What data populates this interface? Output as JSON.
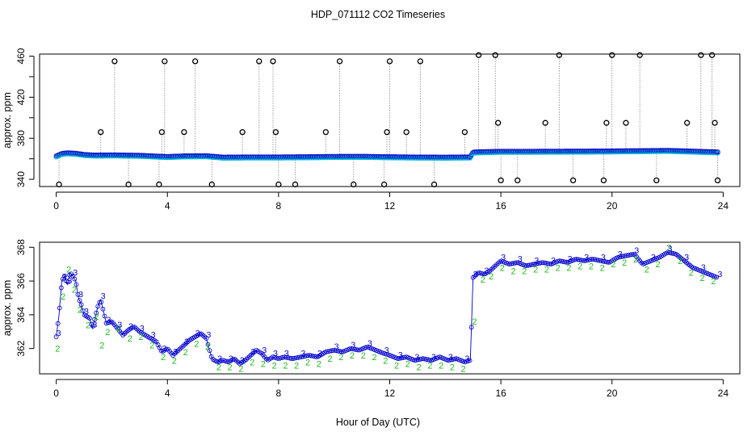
{
  "chart_data": [
    {
      "type": "scatter",
      "title": "HDP_071112  CO2 Timeseries",
      "xlabel": "",
      "ylabel": "approx. ppm",
      "xlim": [
        -0.6,
        24.6
      ],
      "ylim": [
        333,
        462
      ],
      "x_ticks": [
        0,
        4,
        8,
        12,
        16,
        20,
        24
      ],
      "y_ticks": [
        340,
        360,
        380,
        400,
        420,
        440,
        460
      ],
      "y_tick_labels": [
        "340",
        "",
        "380",
        "",
        "420",
        "",
        "460"
      ],
      "baseline": [
        [
          0.0,
          362.4
        ],
        [
          0.2,
          364.8
        ],
        [
          0.4,
          365.4
        ],
        [
          0.7,
          365.0
        ],
        [
          1.0,
          363.8
        ],
        [
          1.4,
          363.2
        ],
        [
          2.0,
          363.4
        ],
        [
          3.0,
          363.0
        ],
        [
          3.8,
          362.0
        ],
        [
          4.0,
          361.8
        ],
        [
          4.6,
          362.4
        ],
        [
          5.4,
          362.6
        ],
        [
          6.0,
          361.2
        ],
        [
          7.0,
          361.4
        ],
        [
          8.0,
          361.4
        ],
        [
          9.0,
          361.6
        ],
        [
          10.0,
          361.9
        ],
        [
          11.0,
          362.0
        ],
        [
          12.0,
          361.6
        ],
        [
          13.0,
          361.3
        ],
        [
          14.0,
          361.2
        ],
        [
          14.9,
          361.4
        ],
        [
          15.0,
          366.2
        ],
        [
          15.5,
          366.6
        ],
        [
          16.0,
          366.9
        ],
        [
          17.0,
          366.9
        ],
        [
          18.0,
          367.0
        ],
        [
          19.0,
          367.1
        ],
        [
          19.9,
          367.2
        ],
        [
          20.0,
          367.3
        ],
        [
          21.0,
          367.5
        ],
        [
          22.0,
          367.8
        ],
        [
          23.0,
          367.0
        ],
        [
          23.8,
          366.3
        ]
      ],
      "spikes": [
        [
          0.1,
          335
        ],
        [
          1.6,
          386
        ],
        [
          2.1,
          455
        ],
        [
          2.6,
          335
        ],
        [
          3.7,
          335
        ],
        [
          3.8,
          386
        ],
        [
          3.9,
          455
        ],
        [
          4.6,
          386
        ],
        [
          5.0,
          455
        ],
        [
          5.6,
          335
        ],
        [
          6.7,
          386
        ],
        [
          7.3,
          455
        ],
        [
          7.8,
          455
        ],
        [
          7.9,
          386
        ],
        [
          8.0,
          335
        ],
        [
          8.6,
          335
        ],
        [
          9.7,
          386
        ],
        [
          10.2,
          455
        ],
        [
          10.7,
          335
        ],
        [
          11.8,
          335
        ],
        [
          11.9,
          386
        ],
        [
          12.0,
          455
        ],
        [
          12.6,
          386
        ],
        [
          13.1,
          455
        ],
        [
          13.6,
          335
        ],
        [
          14.7,
          386
        ],
        [
          15.2,
          461
        ],
        [
          15.8,
          461
        ],
        [
          15.9,
          395
        ],
        [
          16.0,
          339
        ],
        [
          16.6,
          339
        ],
        [
          17.6,
          395
        ],
        [
          18.1,
          461
        ],
        [
          18.6,
          339
        ],
        [
          19.7,
          339
        ],
        [
          19.8,
          395
        ],
        [
          20.0,
          461
        ],
        [
          20.5,
          395
        ],
        [
          21.0,
          461
        ],
        [
          21.6,
          339
        ],
        [
          22.7,
          395
        ],
        [
          23.2,
          461
        ],
        [
          23.6,
          461
        ],
        [
          23.7,
          395
        ],
        [
          23.8,
          339
        ]
      ]
    },
    {
      "type": "scatter",
      "title": "",
      "xlabel": "Hour of Day (UTC)",
      "ylabel": "approx. ppm",
      "xlim": [
        -0.6,
        24.6
      ],
      "ylim": [
        360.5,
        368.3
      ],
      "x_ticks": [
        0,
        4,
        8,
        12,
        16,
        20,
        24
      ],
      "y_ticks": [
        362,
        364,
        366,
        368
      ],
      "series": [
        {
          "name": "3",
          "color": "#0000cc",
          "points": [
            [
              0.0,
              362.7
            ],
            [
              0.1,
              364.0
            ],
            [
              0.2,
              366.0
            ],
            [
              0.3,
              366.3
            ],
            [
              0.4,
              365.8
            ],
            [
              0.5,
              366.5
            ],
            [
              0.6,
              366.3
            ],
            [
              0.7,
              366.0
            ],
            [
              0.8,
              365.0
            ],
            [
              0.9,
              364.6
            ],
            [
              1.0,
              364.0
            ],
            [
              1.2,
              363.8
            ],
            [
              1.3,
              363.2
            ],
            [
              1.5,
              364.5
            ],
            [
              1.6,
              364.9
            ],
            [
              1.7,
              364.2
            ],
            [
              1.8,
              363.5
            ],
            [
              2.0,
              363.6
            ],
            [
              2.2,
              363.2
            ],
            [
              2.4,
              362.8
            ],
            [
              2.6,
              363.1
            ],
            [
              2.8,
              363.3
            ],
            [
              3.0,
              363.0
            ],
            [
              3.2,
              362.8
            ],
            [
              3.4,
              362.6
            ],
            [
              3.6,
              362.4
            ],
            [
              3.8,
              361.8
            ],
            [
              4.0,
              362.0
            ],
            [
              4.2,
              361.6
            ],
            [
              4.4,
              361.9
            ],
            [
              4.6,
              362.2
            ],
            [
              4.8,
              362.5
            ],
            [
              5.0,
              362.7
            ],
            [
              5.2,
              362.9
            ],
            [
              5.4,
              362.6
            ],
            [
              5.6,
              361.4
            ],
            [
              5.8,
              361.2
            ],
            [
              6.0,
              361.3
            ],
            [
              6.2,
              361.2
            ],
            [
              6.4,
              361.4
            ],
            [
              6.6,
              361.1
            ],
            [
              6.8,
              361.3
            ],
            [
              7.0,
              361.6
            ],
            [
              7.2,
              361.9
            ],
            [
              7.4,
              361.7
            ],
            [
              7.6,
              361.3
            ],
            [
              7.8,
              361.5
            ],
            [
              8.0,
              361.4
            ],
            [
              8.2,
              361.5
            ],
            [
              8.5,
              361.4
            ],
            [
              8.8,
              361.5
            ],
            [
              9.1,
              361.6
            ],
            [
              9.4,
              361.5
            ],
            [
              9.7,
              361.8
            ],
            [
              10.0,
              361.9
            ],
            [
              10.3,
              361.8
            ],
            [
              10.6,
              362.0
            ],
            [
              10.9,
              361.9
            ],
            [
              11.2,
              362.1
            ],
            [
              11.5,
              361.9
            ],
            [
              11.8,
              361.7
            ],
            [
              12.0,
              361.6
            ],
            [
              12.3,
              361.4
            ],
            [
              12.6,
              361.5
            ],
            [
              12.9,
              361.3
            ],
            [
              13.2,
              361.4
            ],
            [
              13.5,
              361.3
            ],
            [
              13.8,
              361.5
            ],
            [
              14.1,
              361.3
            ],
            [
              14.4,
              361.4
            ],
            [
              14.7,
              361.2
            ],
            [
              14.9,
              361.3
            ],
            [
              15.0,
              366.2
            ],
            [
              15.2,
              366.5
            ],
            [
              15.4,
              366.4
            ],
            [
              15.6,
              366.6
            ],
            [
              16.0,
              367.2
            ],
            [
              16.3,
              367.0
            ],
            [
              16.6,
              367.1
            ],
            [
              16.9,
              366.9
            ],
            [
              17.2,
              367.0
            ],
            [
              17.5,
              367.1
            ],
            [
              17.8,
              367.0
            ],
            [
              18.1,
              367.2
            ],
            [
              18.4,
              367.1
            ],
            [
              18.7,
              367.3
            ],
            [
              19.0,
              367.2
            ],
            [
              19.3,
              367.3
            ],
            [
              19.6,
              367.2
            ],
            [
              19.9,
              367.1
            ],
            [
              20.2,
              367.4
            ],
            [
              20.5,
              367.5
            ],
            [
              20.8,
              367.6
            ],
            [
              21.1,
              367.0
            ],
            [
              21.4,
              367.2
            ],
            [
              21.7,
              367.4
            ],
            [
              22.0,
              367.7
            ],
            [
              22.3,
              367.6
            ],
            [
              22.6,
              367.2
            ],
            [
              22.9,
              366.8
            ],
            [
              23.2,
              366.6
            ],
            [
              23.5,
              366.4
            ],
            [
              23.8,
              366.2
            ]
          ]
        },
        {
          "name": "2",
          "color": "#22bb22",
          "points": [
            [
              0.05,
              362.0
            ],
            [
              0.25,
              365.1
            ],
            [
              0.45,
              366.7
            ],
            [
              0.65,
              365.5
            ],
            [
              0.85,
              364.3
            ],
            [
              1.15,
              363.4
            ],
            [
              1.45,
              363.9
            ],
            [
              1.65,
              362.2
            ],
            [
              1.85,
              363.0
            ],
            [
              2.25,
              363.2
            ],
            [
              2.65,
              362.6
            ],
            [
              3.05,
              362.7
            ],
            [
              3.45,
              362.2
            ],
            [
              3.85,
              361.5
            ],
            [
              4.25,
              361.3
            ],
            [
              4.65,
              361.8
            ],
            [
              5.05,
              362.3
            ],
            [
              5.45,
              362.1
            ],
            [
              5.85,
              360.9
            ],
            [
              6.25,
              360.9
            ],
            [
              6.65,
              360.8
            ],
            [
              7.05,
              361.2
            ],
            [
              7.45,
              361.1
            ],
            [
              7.85,
              361.0
            ],
            [
              8.25,
              361.0
            ],
            [
              8.65,
              361.0
            ],
            [
              9.05,
              361.2
            ],
            [
              9.45,
              361.1
            ],
            [
              9.85,
              361.4
            ],
            [
              10.25,
              361.5
            ],
            [
              10.65,
              361.6
            ],
            [
              11.05,
              361.6
            ],
            [
              11.45,
              361.5
            ],
            [
              11.85,
              361.3
            ],
            [
              12.25,
              361.0
            ],
            [
              12.65,
              361.1
            ],
            [
              13.05,
              360.9
            ],
            [
              13.45,
              361.0
            ],
            [
              13.85,
              361.0
            ],
            [
              14.25,
              360.9
            ],
            [
              14.65,
              360.8
            ],
            [
              15.05,
              363.6
            ],
            [
              15.35,
              366.1
            ],
            [
              15.65,
              366.3
            ],
            [
              16.05,
              366.8
            ],
            [
              16.45,
              366.6
            ],
            [
              16.85,
              366.6
            ],
            [
              17.25,
              366.7
            ],
            [
              17.65,
              366.7
            ],
            [
              18.05,
              366.8
            ],
            [
              18.45,
              366.8
            ],
            [
              18.85,
              366.9
            ],
            [
              19.25,
              366.9
            ],
            [
              19.65,
              366.8
            ],
            [
              20.05,
              367.0
            ],
            [
              20.45,
              367.1
            ],
            [
              20.85,
              367.3
            ],
            [
              21.25,
              366.7
            ],
            [
              21.65,
              367.0
            ],
            [
              22.05,
              368.0
            ],
            [
              22.45,
              367.2
            ],
            [
              22.85,
              366.5
            ],
            [
              23.25,
              366.2
            ],
            [
              23.65,
              366.0
            ]
          ]
        }
      ]
    }
  ]
}
